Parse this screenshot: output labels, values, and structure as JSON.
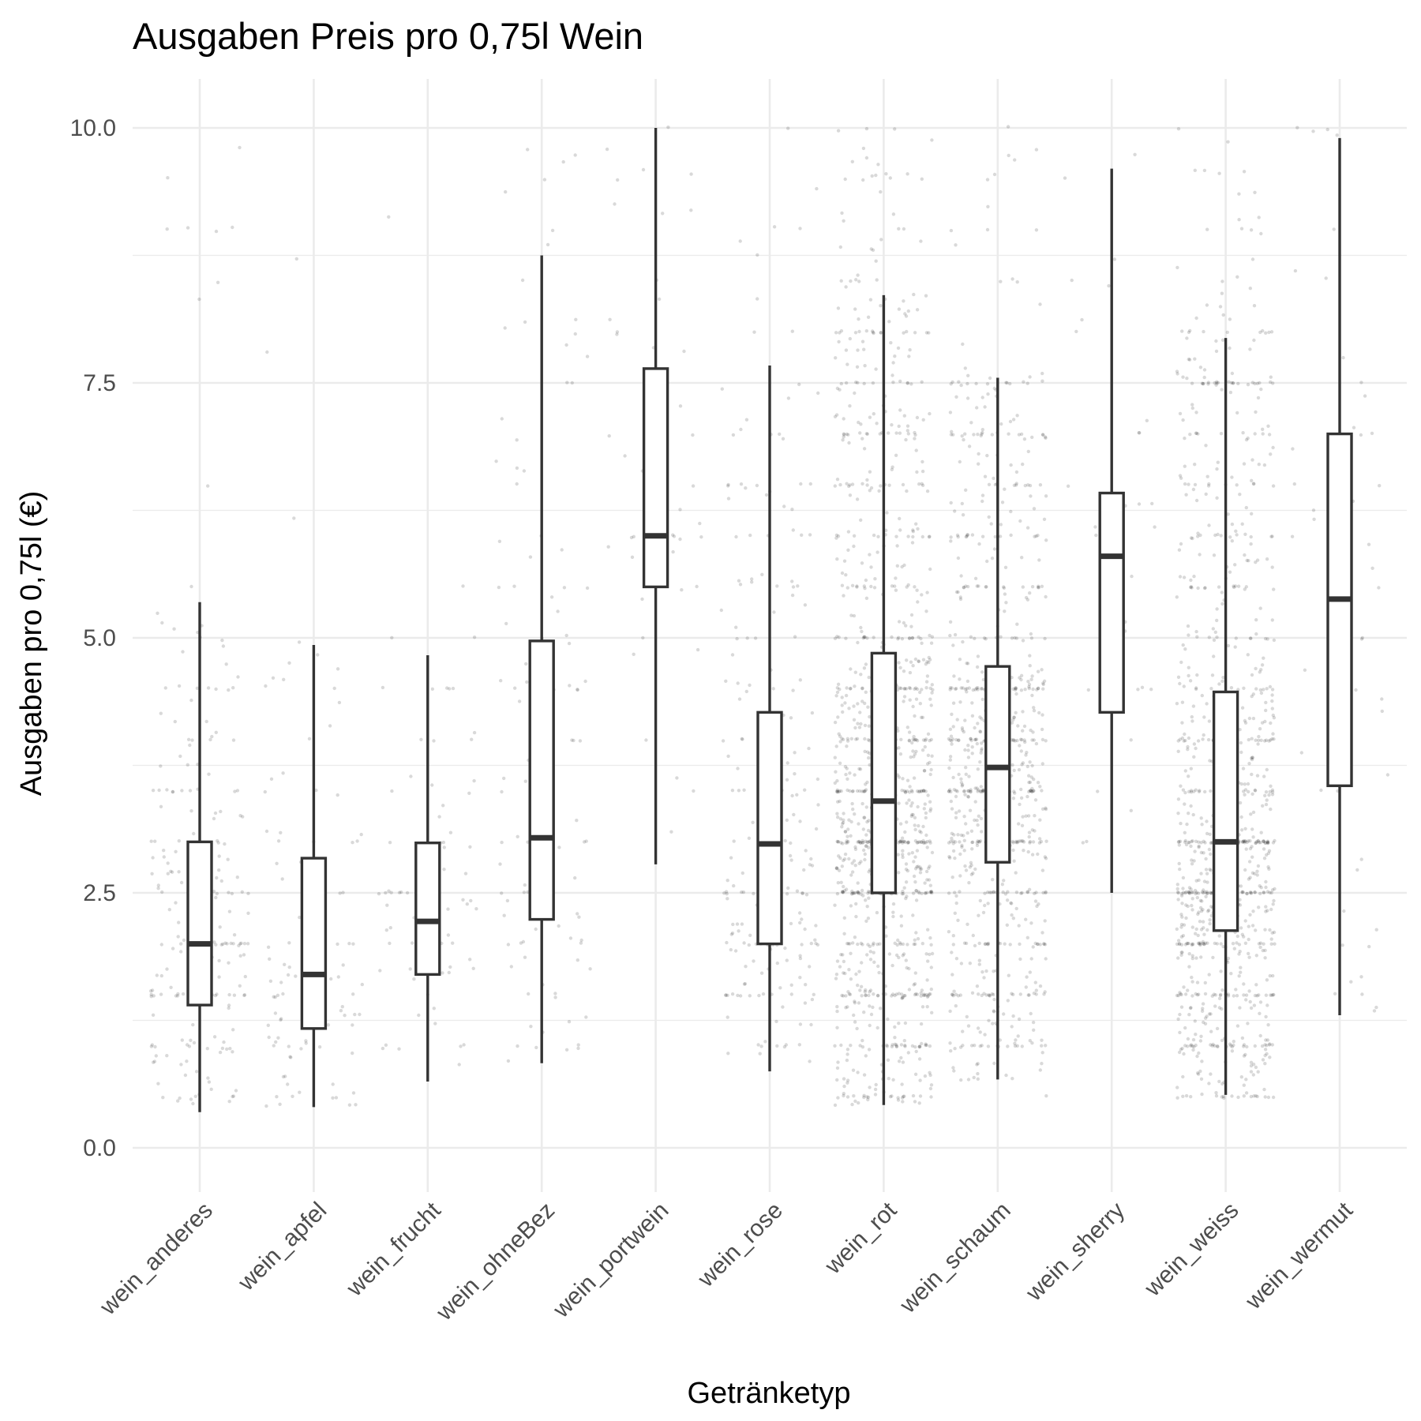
{
  "chart_data": {
    "type": "boxplot",
    "title": "Ausgaben Preis pro 0,75l Wein",
    "xlabel": "Getränketyp",
    "ylabel": "Ausgaben pro 0,75l (€)",
    "ylim": [
      -0.25,
      10.5
    ],
    "yticks": [
      0.0,
      2.5,
      5.0,
      7.5,
      10.0
    ],
    "ytick_labels": [
      "0.0",
      "2.5",
      "5.0",
      "7.5",
      "10.0"
    ],
    "grid": true,
    "jitter_points": true,
    "categories": [
      "wein_anderes",
      "wein_apfel",
      "wein_frucht",
      "wein_ohneBez",
      "wein_portwein",
      "wein_rose",
      "wein_rot",
      "wein_schaum",
      "wein_sherry",
      "wein_weiss",
      "wein_wermut"
    ],
    "boxes": [
      {
        "category": "wein_anderes",
        "min": 0.35,
        "q1": 1.4,
        "median": 2.0,
        "q3": 3.0,
        "max": 5.35
      },
      {
        "category": "wein_apfel",
        "min": 0.4,
        "q1": 1.17,
        "median": 1.7,
        "q3": 2.84,
        "max": 4.93
      },
      {
        "category": "wein_frucht",
        "min": 0.65,
        "q1": 1.7,
        "median": 2.22,
        "q3": 2.99,
        "max": 4.83
      },
      {
        "category": "wein_ohneBez",
        "min": 0.83,
        "q1": 2.24,
        "median": 3.04,
        "q3": 4.97,
        "max": 8.75
      },
      {
        "category": "wein_portwein",
        "min": 2.78,
        "q1": 5.5,
        "median": 6.0,
        "q3": 7.64,
        "max": 10.0
      },
      {
        "category": "wein_rose",
        "min": 0.75,
        "q1": 2.0,
        "median": 2.98,
        "q3": 4.27,
        "max": 7.67
      },
      {
        "category": "wein_rot",
        "min": 0.42,
        "q1": 2.5,
        "median": 3.4,
        "q3": 4.85,
        "max": 8.36
      },
      {
        "category": "wein_schaum",
        "min": 0.67,
        "q1": 2.8,
        "median": 3.73,
        "q3": 4.72,
        "max": 7.55
      },
      {
        "category": "wein_sherry",
        "min": 2.5,
        "q1": 4.27,
        "median": 5.8,
        "q3": 6.42,
        "max": 9.6
      },
      {
        "category": "wein_weiss",
        "min": 0.52,
        "q1": 2.13,
        "median": 3.0,
        "q3": 4.47,
        "max": 7.94
      },
      {
        "category": "wein_wermut",
        "min": 1.3,
        "q1": 3.55,
        "median": 5.38,
        "q3": 7.0,
        "max": 9.9
      }
    ],
    "point_counts": [
      220,
      100,
      80,
      110,
      45,
      220,
      1100,
      800,
      30,
      1000,
      50
    ]
  }
}
